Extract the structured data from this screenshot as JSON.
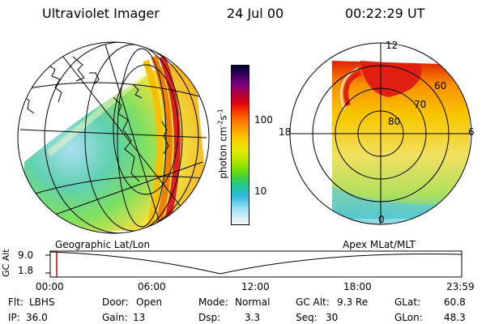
{
  "header": {
    "instrument": "Ultraviolet Imager",
    "date": "24 Jul 00",
    "time": "00:22:29 UT"
  },
  "colorbar": {
    "unit_base": "photon cm",
    "unit_exp1": "-2",
    "unit_mid": "s",
    "unit_exp2": "-1",
    "ticks": [
      "100",
      "10"
    ],
    "colors": [
      "#000030",
      "#3a0060",
      "#7a0080",
      "#b00040",
      "#e00010",
      "#f84000",
      "#fc7a00",
      "#fca800",
      "#f8d000",
      "#e8e800",
      "#c0e800",
      "#80e000",
      "#40d040",
      "#20c8a0",
      "#30b8e0",
      "#80d8f0",
      "#c8ecf8",
      "#f8f8f8"
    ]
  },
  "left_panel": {
    "caption": "Geographic Lat/Lon"
  },
  "right_panel": {
    "caption": "Apex MLat/MLT",
    "mlt_labels": {
      "top": "12",
      "left": "18",
      "right": "6",
      "bottom": "0"
    },
    "lat_labels": [
      "60",
      "70",
      "80"
    ]
  },
  "timeline": {
    "axis_label": "GC Alt",
    "y_ticks": [
      "9.0",
      "1.8"
    ],
    "x_ticks": [
      "00:00",
      "06:00",
      "12:00",
      "18:00",
      "23:59"
    ],
    "current_fraction": 0.0156
  },
  "info": {
    "flt_label": "Flt:",
    "flt_value": "LBHS",
    "ip_label": "IP:",
    "ip_value": "36.0",
    "door_label": "Door:",
    "door_value": "Open",
    "gain_label": "Gain:",
    "gain_value": "13",
    "mode_label": "Mode:",
    "mode_value": "Normal",
    "dsp_label": "Dsp:",
    "dsp_value": "3.3",
    "gcalt_label": "GC Alt:",
    "gcalt_value": "9.3 Re",
    "seq_label": "Seq:",
    "seq_value": "30",
    "glat_label": "GLat:",
    "glat_value": "60.8",
    "glon_label": "GLon:",
    "glon_value": "48.3"
  }
}
